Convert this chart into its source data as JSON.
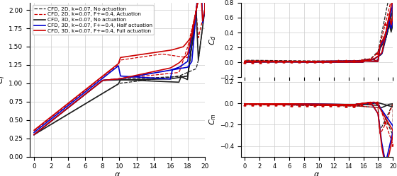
{
  "legend_entries": [
    "CFD, 2D, k=0.07, No actuation",
    "CFD, 2D, k=0.07, F+=0.4, Actuation",
    "CFD, 3D, k=0.07, No actuation",
    "CFD, 3D, k=0.07, F+=0.4, Half actuation",
    "CFD, 3D, k=0.07, F+=0.4, Full actuation"
  ],
  "line_styles": [
    "--",
    "--",
    "-",
    "-",
    "-"
  ],
  "line_colors": [
    "#222222",
    "#cc0000",
    "#222222",
    "#0000cc",
    "#cc0000"
  ],
  "line_widths": [
    0.9,
    0.9,
    1.2,
    1.2,
    1.2
  ],
  "background_color": "#ffffff",
  "grid_color": "#cccccc"
}
